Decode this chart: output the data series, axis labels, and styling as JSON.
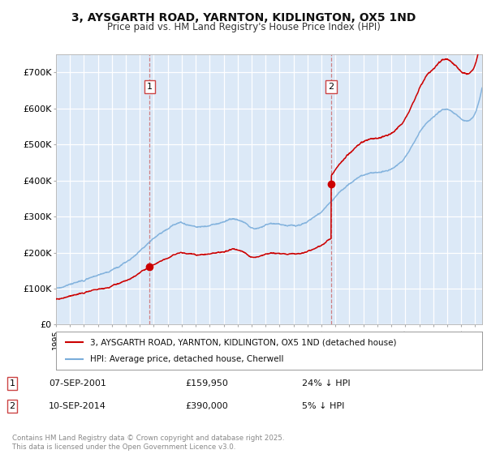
{
  "title_line1": "3, AYSGARTH ROAD, YARNTON, KIDLINGTON, OX5 1ND",
  "title_line2": "Price paid vs. HM Land Registry's House Price Index (HPI)",
  "ylim": [
    0,
    750000
  ],
  "ytick_vals": [
    0,
    100000,
    200000,
    300000,
    400000,
    500000,
    600000,
    700000
  ],
  "ytick_labels": [
    "£0",
    "£100K",
    "£200K",
    "£300K",
    "£400K",
    "£500K",
    "£600K",
    "£700K"
  ],
  "plot_bg_color": "#dce9f7",
  "grid_color": "#ffffff",
  "purchase1_x": 2001.69,
  "purchase1_y": 159950,
  "purchase2_x": 2014.69,
  "purchase2_y": 390000,
  "legend_entry1": "3, AYSGARTH ROAD, YARNTON, KIDLINGTON, OX5 1ND (detached house)",
  "legend_entry2": "HPI: Average price, detached house, Cherwell",
  "line_red_color": "#cc0000",
  "line_blue_color": "#7aaddb",
  "vline_color": "#cc6666",
  "footer": "Contains HM Land Registry data © Crown copyright and database right 2025.\nThis data is licensed under the Open Government Licence v3.0.",
  "xmin": 1995.0,
  "xmax": 2025.5
}
